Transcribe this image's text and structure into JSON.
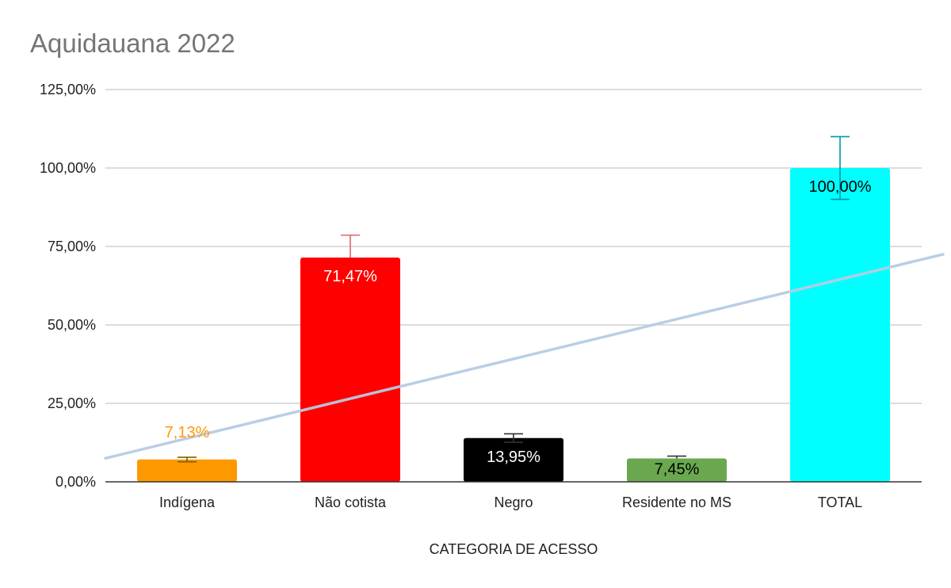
{
  "chart_data": {
    "type": "bar",
    "title": "Aquidauana 2022",
    "xlabel": "CATEGORIA DE ACESSO",
    "ylabel": "",
    "categories": [
      "Indígena",
      "Não cotista",
      "Negro",
      "Residente no MS",
      "TOTAL"
    ],
    "values": [
      7.13,
      71.47,
      13.95,
      7.45,
      100.0
    ],
    "data_labels": [
      "7,13%",
      "71,47%",
      "13,95%",
      "7,45%",
      "100,00%"
    ],
    "bar_colors": [
      "#FF9900",
      "#FF0000",
      "#000000",
      "#6AA84F",
      "#00FFFF"
    ],
    "label_colors": [
      "#FF9900",
      "#FFFFFF",
      "#FFFFFF",
      "#000000",
      "#000000"
    ],
    "error_bars": [
      {
        "low": 6.4,
        "high": 7.8,
        "color": "#7F6000"
      },
      {
        "low": 71.47,
        "high": 78.6,
        "color": "#E06666"
      },
      {
        "low": 12.6,
        "high": 15.3,
        "color": "#333333"
      },
      {
        "low": 7.45,
        "high": 8.2,
        "color": "#333333"
      },
      {
        "low": 90.0,
        "high": 110.0,
        "color": "#0097A7"
      }
    ],
    "trendline": {
      "type": "linear",
      "color": "#B7CCE4",
      "y_at_left_edge": 7.5,
      "y_at_right_edge": 72.5
    },
    "ylim": [
      0,
      125
    ],
    "yticks": [
      0,
      25,
      50,
      75,
      100,
      125
    ],
    "ytick_labels": [
      "0,00%",
      "25,00%",
      "50,00%",
      "75,00%",
      "100,00%",
      "125,00%"
    ],
    "grid": true,
    "legend": "none"
  }
}
